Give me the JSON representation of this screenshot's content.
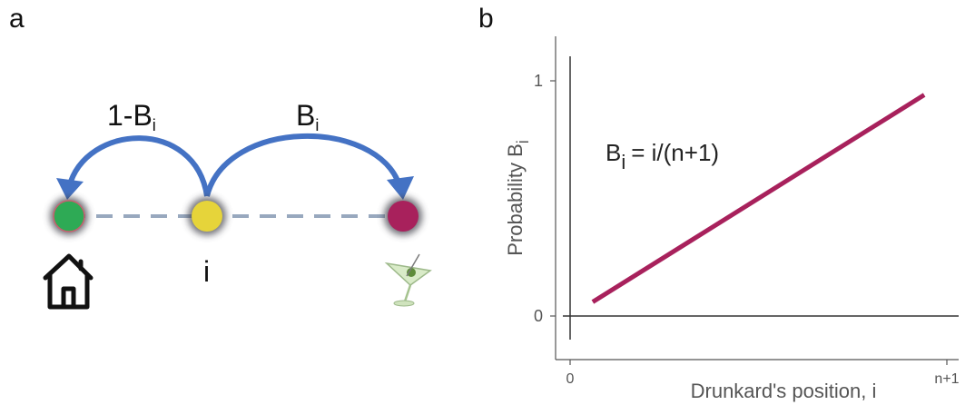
{
  "panel_a": {
    "letter": "a",
    "left_arrow_label": {
      "main": "1-B",
      "sub": "i"
    },
    "right_arrow_label": {
      "main": "B",
      "sub": "i"
    },
    "position_label": "i",
    "colors": {
      "arrow": "#4472C4",
      "dash": "#98A8BE",
      "home_node": "#2EAA55",
      "position_node": "#E6D43A",
      "bar_node": "#A8215C",
      "halo": "#3C3C46"
    },
    "icons": {
      "home": "house-icon",
      "bar": "martini-glass-icon"
    }
  },
  "panel_b": {
    "letter": "b",
    "equation": {
      "main": "B",
      "sub": "i",
      "rest": "= i/(n+1)"
    },
    "chart_data": {
      "type": "line",
      "xlabel": "Drunkard's position, i",
      "ylabel": {
        "main": "Probability B",
        "sub": "i"
      },
      "x_ticks": [
        "0",
        "n+1"
      ],
      "y_ticks": [
        "0",
        "1"
      ],
      "x_range": [
        0,
        1
      ],
      "y_range": [
        0,
        1
      ],
      "series": [
        {
          "color": "#A8215C",
          "x": [
            0.06,
            0.94
          ],
          "y": [
            0.06,
            0.94
          ]
        }
      ],
      "grid": false
    }
  }
}
